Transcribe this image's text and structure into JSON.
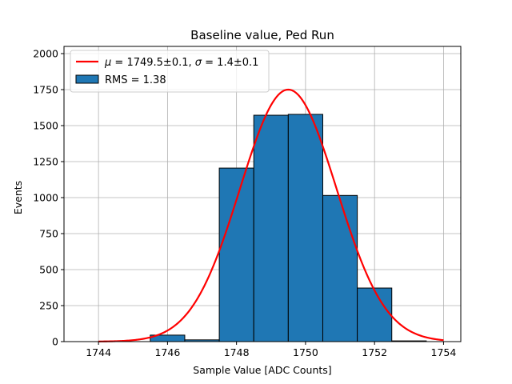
{
  "chart_data": {
    "type": "bar",
    "title": "Baseline value, Ped Run",
    "xlabel": "Sample Value [ADC Counts]",
    "ylabel": "Events",
    "xlim": [
      1743.0,
      1754.5
    ],
    "ylim": [
      0,
      2050
    ],
    "x_ticks": [
      1744,
      1746,
      1748,
      1750,
      1752,
      1754
    ],
    "y_ticks": [
      0,
      250,
      500,
      750,
      1000,
      1250,
      1500,
      1750,
      2000
    ],
    "grid": true,
    "legend_position": "top-left",
    "histogram": {
      "name": "RMS = 1.38",
      "bin_width": 1,
      "bin_left_edges": [
        1743.5,
        1744.5,
        1745.5,
        1746.5,
        1747.5,
        1748.5,
        1749.5,
        1750.5,
        1751.5,
        1752.5
      ],
      "values": [
        0,
        0,
        45,
        12,
        1205,
        1572,
        1578,
        1015,
        372,
        5
      ]
    },
    "fit": {
      "name": "$\\mu = 1749.5\\pm0.1$, $\\sigma = 1.4\\pm0.1$",
      "legend_label": {
        "mu_symbol": "μ",
        "mu_text": " = 1749.5±0.1, ",
        "sigma_symbol": "σ",
        "sigma_text": " = 1.4±0.1"
      },
      "mu": 1749.5,
      "sigma": 1.4,
      "amplitude": 1750,
      "x_range": [
        1744,
        1754
      ]
    },
    "colors": {
      "bars": "#1f77b4",
      "bar_edge": "#000000",
      "fit_line": "#ff0000",
      "grid": "#b0b0b0"
    }
  },
  "legend": {
    "hist_label": "RMS = 1.38"
  }
}
